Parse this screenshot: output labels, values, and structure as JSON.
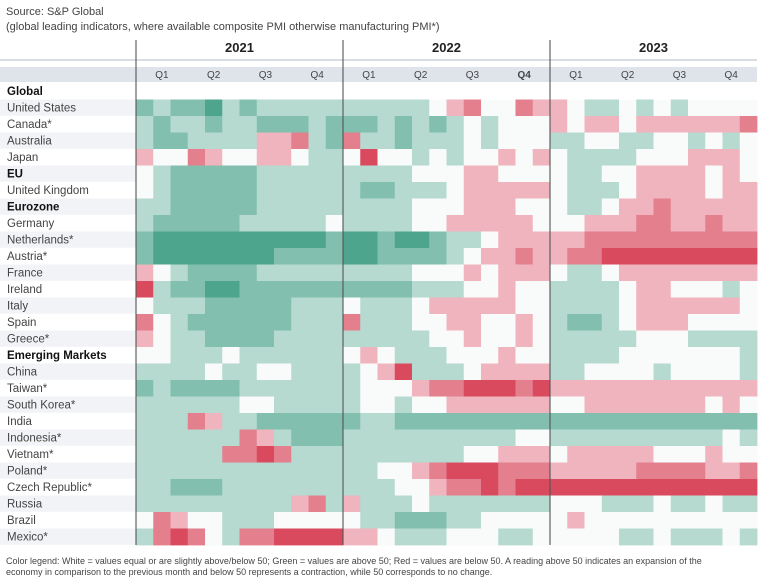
{
  "source": "Source: S&P Global",
  "subtitle": "(global leading indicators, where available composite PMI otherwise manufacturing PMI*)",
  "legend_lines": [
    "Color legend: White = values equal or are slightly above/below 50; Green = values are above 50; Red = values are below 50. A reading above 50 indicates an expansion of the",
    "economy in comparison to the previous month and below 50 represents a contraction, while 50 corresponds to no change."
  ],
  "colors": {
    "green": "#4ea58d",
    "red": "#d94a5f",
    "neutral": "#ffffff",
    "header_band": "#dfe3ea",
    "row_alt": "#f1f3f6"
  },
  "chart_data": {
    "type": "heatmap",
    "years": [
      "2021",
      "2022",
      "2023"
    ],
    "quarters": [
      "Q1",
      "Q2",
      "Q3",
      "Q4",
      "Q1",
      "Q2",
      "Q3",
      "Q4",
      "Q1",
      "Q2",
      "Q3",
      "Q4"
    ],
    "months_per_quarter": 3,
    "scale": "levels from -3 (strong contraction, red) to +3 (strong expansion, green); 0 = around 50",
    "rows": [
      {
        "label": "Global",
        "header": true
      },
      {
        "label": "United States",
        "values": [
          2,
          1,
          2,
          2,
          3,
          1,
          2,
          1,
          1,
          1,
          1,
          1,
          1,
          1,
          1,
          1,
          1,
          0,
          -1,
          -2,
          0,
          0,
          -2,
          -1,
          -1,
          0,
          1,
          1,
          0,
          1,
          0,
          1,
          0,
          0,
          0,
          0
        ]
      },
      {
        "label": "Canada*",
        "values": [
          1,
          2,
          1,
          1,
          2,
          1,
          1,
          2,
          2,
          2,
          1,
          2,
          2,
          2,
          1,
          2,
          1,
          2,
          1,
          0,
          1,
          0,
          0,
          0,
          -1,
          0,
          -1,
          -1,
          0,
          -1,
          -1,
          -1,
          -1,
          -1,
          -1,
          -2
        ]
      },
      {
        "label": "Australia",
        "values": [
          1,
          2,
          2,
          1,
          1,
          1,
          1,
          -1,
          -1,
          -2,
          1,
          2,
          -2,
          1,
          1,
          2,
          1,
          1,
          1,
          0,
          1,
          0,
          0,
          0,
          1,
          1,
          0,
          0,
          1,
          1,
          0,
          0,
          1,
          0,
          1,
          0
        ]
      },
      {
        "label": "Japan",
        "values": [
          -1,
          0,
          0,
          -2,
          -1,
          0,
          0,
          -1,
          -1,
          0,
          1,
          1,
          0,
          -3,
          0,
          0,
          1,
          0,
          1,
          0,
          0,
          -1,
          0,
          -1,
          0,
          1,
          1,
          1,
          1,
          0,
          0,
          0,
          -1,
          -1,
          -1,
          0
        ]
      },
      {
        "label": "EU",
        "header": true,
        "values": [
          0,
          1,
          2,
          2,
          2,
          2,
          2,
          1,
          1,
          1,
          1,
          1,
          1,
          1,
          1,
          1,
          0,
          0,
          0,
          -1,
          -1,
          0,
          0,
          0,
          0,
          1,
          1,
          0,
          0,
          -1,
          -1,
          -1,
          -1,
          0,
          -1,
          0
        ]
      },
      {
        "label": "United Kingdom",
        "values": [
          0,
          1,
          2,
          2,
          2,
          2,
          2,
          1,
          1,
          1,
          1,
          1,
          1,
          2,
          2,
          1,
          1,
          1,
          0,
          -1,
          -1,
          -1,
          -1,
          -1,
          0,
          1,
          1,
          1,
          0,
          -1,
          -1,
          -1,
          -1,
          0,
          -1,
          -1
        ]
      },
      {
        "label": "Eurozone",
        "header": true,
        "values": [
          1,
          1,
          2,
          2,
          2,
          2,
          2,
          1,
          1,
          1,
          1,
          1,
          1,
          1,
          1,
          1,
          0,
          0,
          0,
          -1,
          -1,
          -1,
          0,
          0,
          0,
          1,
          1,
          0,
          -1,
          -1,
          -2,
          -1,
          -1,
          -1,
          -1,
          -1
        ]
      },
      {
        "label": "Germany",
        "values": [
          1,
          2,
          2,
          2,
          2,
          2,
          1,
          1,
          1,
          1,
          1,
          0,
          1,
          1,
          1,
          1,
          0,
          0,
          -1,
          -1,
          -1,
          -1,
          -1,
          0,
          0,
          0,
          -1,
          -1,
          -1,
          -2,
          -2,
          -1,
          -1,
          -2,
          -1,
          -1
        ]
      },
      {
        "label": "Netherlands*",
        "values": [
          2,
          3,
          3,
          3,
          3,
          3,
          3,
          3,
          3,
          3,
          3,
          2,
          3,
          3,
          2,
          3,
          3,
          2,
          1,
          1,
          0,
          -1,
          -1,
          -1,
          -1,
          -1,
          -2,
          -2,
          -2,
          -2,
          -2,
          -2,
          -2,
          -2,
          -2,
          -2
        ]
      },
      {
        "label": "Austria*",
        "values": [
          2,
          3,
          3,
          3,
          3,
          3,
          3,
          3,
          2,
          2,
          2,
          2,
          3,
          3,
          2,
          2,
          2,
          2,
          1,
          0,
          -1,
          -1,
          -2,
          -1,
          -1,
          -2,
          -2,
          -3,
          -3,
          -3,
          -3,
          -3,
          -3,
          -3,
          -3,
          -3
        ]
      },
      {
        "label": "France",
        "values": [
          -1,
          0,
          1,
          2,
          2,
          2,
          2,
          1,
          1,
          1,
          1,
          1,
          1,
          1,
          1,
          1,
          0,
          0,
          0,
          -1,
          0,
          -1,
          -1,
          -1,
          0,
          1,
          1,
          0,
          -1,
          -1,
          -1,
          -1,
          -1,
          -1,
          -1,
          -1
        ]
      },
      {
        "label": "Ireland",
        "values": [
          -3,
          1,
          2,
          2,
          3,
          3,
          2,
          2,
          2,
          2,
          2,
          2,
          2,
          2,
          2,
          2,
          1,
          1,
          1,
          0,
          0,
          -1,
          0,
          0,
          1,
          1,
          1,
          1,
          0,
          -1,
          -1,
          0,
          0,
          0,
          1,
          0
        ]
      },
      {
        "label": "Italy",
        "values": [
          0,
          1,
          1,
          1,
          2,
          2,
          2,
          2,
          2,
          1,
          1,
          1,
          0,
          1,
          1,
          1,
          0,
          -1,
          -1,
          -1,
          -1,
          -1,
          0,
          0,
          1,
          1,
          1,
          1,
          0,
          -1,
          -1,
          -1,
          -1,
          -1,
          -1,
          0
        ]
      },
      {
        "label": "Spain",
        "values": [
          -2,
          0,
          1,
          2,
          2,
          2,
          2,
          2,
          2,
          1,
          1,
          1,
          -2,
          1,
          1,
          1,
          0,
          0,
          -1,
          -1,
          0,
          0,
          -1,
          0,
          1,
          2,
          2,
          1,
          0,
          -1,
          -1,
          -1,
          0,
          0,
          0,
          0
        ]
      },
      {
        "label": "Greece*",
        "values": [
          -1,
          0,
          1,
          1,
          2,
          2,
          2,
          2,
          1,
          1,
          1,
          1,
          1,
          1,
          1,
          1,
          1,
          0,
          0,
          -1,
          0,
          0,
          -1,
          0,
          1,
          1,
          1,
          1,
          1,
          0,
          0,
          0,
          1,
          1,
          1,
          1
        ]
      },
      {
        "label": "Emerging Markets",
        "header": true,
        "values": [
          0,
          0,
          1,
          1,
          1,
          0,
          1,
          1,
          1,
          1,
          1,
          1,
          0,
          -1,
          0,
          1,
          1,
          1,
          0,
          0,
          0,
          -1,
          0,
          0,
          1,
          1,
          1,
          1,
          0,
          0,
          0,
          0,
          0,
          0,
          0,
          1
        ]
      },
      {
        "label": "China",
        "values": [
          1,
          1,
          1,
          1,
          0,
          1,
          1,
          0,
          0,
          1,
          1,
          1,
          1,
          0,
          -1,
          -3,
          1,
          1,
          1,
          0,
          -1,
          -1,
          -1,
          -1,
          1,
          1,
          0,
          0,
          0,
          0,
          1,
          0,
          0,
          0,
          0,
          1
        ]
      },
      {
        "label": "Taiwan*",
        "values": [
          2,
          1,
          2,
          2,
          2,
          2,
          1,
          1,
          1,
          1,
          1,
          1,
          1,
          0,
          0,
          0,
          -1,
          -2,
          -2,
          -3,
          -3,
          -3,
          -2,
          -3,
          -1,
          -1,
          -1,
          -1,
          -1,
          -1,
          -1,
          -1,
          -1,
          -1,
          -1,
          -1
        ]
      },
      {
        "label": "South Korea*",
        "values": [
          1,
          1,
          1,
          1,
          1,
          1,
          0,
          0,
          1,
          1,
          1,
          1,
          1,
          0,
          0,
          1,
          0,
          0,
          -1,
          -1,
          -1,
          -1,
          -1,
          -1,
          0,
          0,
          -1,
          -1,
          -1,
          -1,
          -1,
          -1,
          -1,
          0,
          -1,
          0
        ]
      },
      {
        "label": "India",
        "values": [
          1,
          1,
          1,
          -2,
          -1,
          1,
          1,
          2,
          2,
          2,
          2,
          2,
          2,
          1,
          1,
          2,
          2,
          2,
          2,
          2,
          2,
          2,
          2,
          2,
          2,
          2,
          2,
          2,
          2,
          2,
          2,
          2,
          2,
          2,
          2,
          2
        ]
      },
      {
        "label": "Indonesia*",
        "values": [
          1,
          1,
          1,
          1,
          1,
          1,
          -2,
          -1,
          1,
          2,
          2,
          2,
          1,
          1,
          1,
          1,
          1,
          1,
          1,
          1,
          1,
          1,
          0,
          0,
          1,
          1,
          1,
          1,
          1,
          1,
          1,
          1,
          1,
          1,
          0,
          1
        ]
      },
      {
        "label": "Vietnam*",
        "values": [
          1,
          1,
          1,
          1,
          1,
          -2,
          -2,
          -3,
          -2,
          1,
          1,
          1,
          1,
          1,
          1,
          1,
          1,
          1,
          1,
          0,
          0,
          -1,
          -1,
          -1,
          0,
          -1,
          -1,
          -1,
          -1,
          -1,
          0,
          0,
          0,
          -1,
          0,
          0
        ]
      },
      {
        "label": "Poland*",
        "values": [
          1,
          1,
          1,
          1,
          1,
          1,
          1,
          1,
          1,
          1,
          1,
          1,
          1,
          1,
          0,
          0,
          -1,
          -2,
          -3,
          -3,
          -3,
          -2,
          -2,
          -2,
          -1,
          -1,
          -1,
          -1,
          -1,
          -2,
          -2,
          -2,
          -2,
          -1,
          -1,
          -2
        ]
      },
      {
        "label": "Czech Republic*",
        "values": [
          1,
          1,
          2,
          2,
          2,
          1,
          1,
          1,
          1,
          1,
          1,
          1,
          1,
          1,
          1,
          0,
          0,
          -1,
          -2,
          -2,
          -3,
          -2,
          -3,
          -3,
          -3,
          -3,
          -3,
          -3,
          -3,
          -3,
          -3,
          -3,
          -3,
          -3,
          -3,
          -3
        ]
      },
      {
        "label": "Russia",
        "values": [
          1,
          1,
          1,
          1,
          1,
          1,
          1,
          1,
          1,
          -1,
          -2,
          1,
          -1,
          1,
          1,
          1,
          0,
          1,
          1,
          1,
          1,
          1,
          1,
          1,
          0,
          0,
          0,
          1,
          1,
          1,
          0,
          1,
          1,
          0,
          1,
          1
        ]
      },
      {
        "label": "Brazil",
        "values": [
          0,
          -2,
          -1,
          0,
          0,
          1,
          1,
          1,
          0,
          0,
          0,
          0,
          0,
          1,
          1,
          2,
          2,
          2,
          1,
          1,
          0,
          0,
          0,
          0,
          0,
          -1,
          0,
          0,
          0,
          0,
          0,
          0,
          0,
          0,
          0,
          0
        ]
      },
      {
        "label": "Mexico*",
        "values": [
          1,
          -2,
          -3,
          -2,
          0,
          1,
          -2,
          -2,
          -3,
          -3,
          -3,
          -3,
          -1,
          -1,
          0,
          1,
          1,
          1,
          0,
          0,
          0,
          1,
          1,
          0,
          0,
          0,
          0,
          0,
          1,
          1,
          0,
          1,
          1,
          1,
          0,
          1
        ]
      }
    ]
  }
}
